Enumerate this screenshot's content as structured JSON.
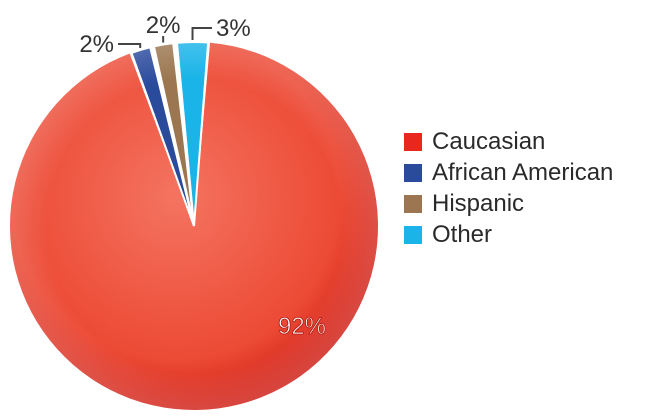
{
  "chart_data": {
    "type": "pie",
    "title": "",
    "categories": [
      "Caucasian",
      "African American",
      "Hispanic",
      "Other"
    ],
    "values": [
      92,
      2,
      2,
      3
    ],
    "data_labels": [
      "92%",
      "2%",
      "2%",
      "3%"
    ],
    "colors": [
      "#e8271e",
      "#2a4a9c",
      "#9b7650",
      "#1ab4e8"
    ],
    "legend_position": "right",
    "start_angle_deg": 0,
    "direction": "counterclockwise"
  },
  "legend": {
    "items": [
      {
        "label": "Caucasian",
        "color": "#e8271e"
      },
      {
        "label": "African American",
        "color": "#2a4a9c"
      },
      {
        "label": "Hispanic",
        "color": "#9b7650"
      },
      {
        "label": "Other",
        "color": "#1ab4e8"
      }
    ]
  }
}
